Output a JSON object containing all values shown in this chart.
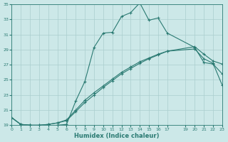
{
  "xlabel": "Humidex (Indice chaleur)",
  "xlim": [
    0,
    23
  ],
  "ylim": [
    19,
    35
  ],
  "yticks": [
    19,
    21,
    23,
    25,
    27,
    29,
    31,
    33,
    35
  ],
  "background_color": "#cce8e8",
  "plot_bg_color": "#cce8e8",
  "line_color": "#2a7a72",
  "grid_color": "#aacece",
  "curve1_x": [
    0,
    1,
    2,
    3,
    4,
    5,
    6,
    7,
    8,
    9,
    10,
    11,
    12,
    13,
    14,
    15,
    16,
    17,
    20,
    21,
    22,
    23
  ],
  "curve1_y": [
    20.0,
    19.1,
    19.0,
    18.9,
    18.9,
    19.0,
    19.1,
    22.2,
    24.8,
    29.3,
    31.2,
    31.3,
    33.4,
    33.9,
    35.2,
    32.9,
    33.2,
    31.2,
    29.3,
    27.3,
    27.1,
    25.8
  ],
  "curve2_x": [
    0,
    1,
    2,
    3,
    4,
    5,
    6,
    7,
    8,
    9,
    10,
    11,
    12,
    13,
    14,
    15,
    16,
    17,
    20,
    21,
    22,
    23
  ],
  "curve2_y": [
    20.0,
    19.1,
    19.0,
    19.0,
    19.1,
    19.3,
    19.6,
    20.8,
    22.0,
    23.0,
    24.0,
    24.9,
    25.8,
    26.5,
    27.2,
    27.8,
    28.3,
    28.8,
    29.4,
    28.4,
    27.5,
    27.1
  ],
  "curve3_x": [
    0,
    1,
    2,
    3,
    4,
    5,
    6,
    7,
    8,
    9,
    10,
    11,
    12,
    13,
    14,
    15,
    16,
    17,
    20,
    21,
    22,
    23
  ],
  "curve3_y": [
    20.0,
    19.1,
    19.0,
    19.0,
    19.1,
    19.3,
    19.7,
    21.0,
    22.3,
    23.3,
    24.2,
    25.1,
    26.0,
    26.7,
    27.4,
    27.9,
    28.4,
    28.8,
    29.1,
    27.8,
    27.2,
    24.3
  ]
}
